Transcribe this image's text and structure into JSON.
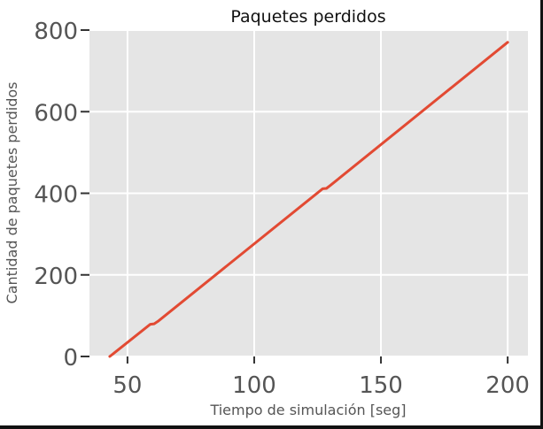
{
  "chart_data": {
    "type": "line",
    "title": "Paquetes perdidos",
    "xlabel": "Tiempo de simulación [seg]",
    "ylabel": "Cantidad de paquetes perdidos",
    "xlim": [
      35,
      208
    ],
    "ylim": [
      0,
      800
    ],
    "xticks": [
      50,
      100,
      150,
      200
    ],
    "yticks": [
      0,
      200,
      400,
      600,
      800
    ],
    "grid": true,
    "legend": "none",
    "series": [
      {
        "color": "#e24a33",
        "points": [
          [
            43,
            0
          ],
          [
            59,
            79
          ],
          [
            60.5,
            80
          ],
          [
            62,
            86
          ],
          [
            127,
            411
          ],
          [
            128.5,
            412
          ],
          [
            130,
            419
          ],
          [
            200,
            770
          ]
        ]
      }
    ]
  },
  "style": {
    "plot_background": "#e5e5e5",
    "grid_color": "#ffffff",
    "tick_label_color": "#555555",
    "title_color": "#111111"
  }
}
